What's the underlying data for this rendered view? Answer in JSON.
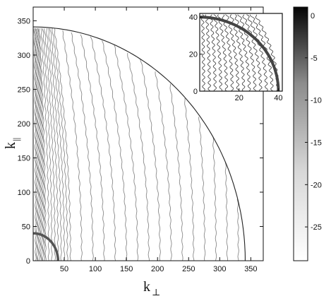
{
  "chart_data": {
    "type": "heatmap",
    "subtype": "contour",
    "title": "",
    "xlabel": "k",
    "xlabel_subscript": "⊥",
    "ylabel": "k",
    "ylabel_subscript": "||",
    "xlim": [
      0,
      370
    ],
    "ylim": [
      0,
      370
    ],
    "xticks": [
      50,
      100,
      150,
      200,
      250,
      300,
      350
    ],
    "yticks": [
      0,
      50,
      100,
      150,
      200,
      250,
      300,
      350
    ],
    "outer_circle_radius": 341,
    "inner_circle_radius": 40,
    "contour_step": 10,
    "colormap": "gray",
    "colorbar": {
      "min": -29,
      "max": 1,
      "ticks": [
        0,
        -5,
        -10,
        -15,
        -20,
        -25
      ]
    },
    "inset": {
      "xlim": [
        0,
        42
      ],
      "ylim": [
        0,
        42
      ],
      "xticks": [
        20,
        40
      ],
      "yticks": [
        0,
        20,
        40
      ],
      "circle_radius": 40
    },
    "colors": {
      "contour": "#8a8a8a",
      "inner_circle": "#555555",
      "outer_circle": "#222222",
      "inset_contour": "#3a3a3a"
    }
  }
}
